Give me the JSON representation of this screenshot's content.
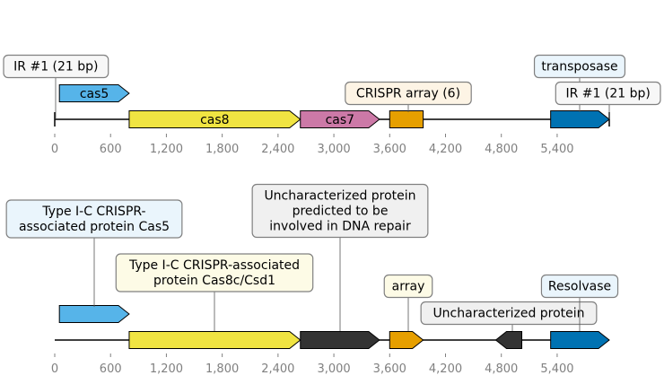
{
  "colors": {
    "cas5": "#56b4e9",
    "cas8": "#f0e442",
    "cas7": "#cc79a7",
    "crispr": "#e69f00",
    "transposase": "#0072b2",
    "uncharacterized": "#333333",
    "box_white": "#f7f7f7",
    "box_blue": "#eaf5fc",
    "box_yellow": "#fdfbe6",
    "box_orange": "#fdf4e5",
    "box_grey": "#f0f0f0",
    "tick_text": "#808080"
  },
  "tracks": [
    {
      "axis": {
        "min": 0,
        "max": 5900,
        "ticks": [
          0,
          600,
          1200,
          1800,
          2400,
          3000,
          3600,
          4200,
          4800,
          5400
        ]
      },
      "tick_labels": [
        "0",
        "600",
        "1,200",
        "1,800",
        "2,400",
        "3,000",
        "3,600",
        "4,200",
        "4,800",
        "5,400"
      ],
      "features": [
        {
          "label": "cas5",
          "start": 50,
          "end": 800,
          "strand": 1,
          "level": 1,
          "color": "#56b4e9",
          "text_inside": true
        },
        {
          "label": "cas8",
          "start": 800,
          "end": 2640,
          "strand": 1,
          "level": 0,
          "color": "#f0e442",
          "text_inside": true
        },
        {
          "label": "cas7",
          "start": 2640,
          "end": 3490,
          "strand": 1,
          "level": 0,
          "color": "#cc79a7",
          "text_inside": true
        },
        {
          "label": "",
          "start": 3600,
          "end": 3960,
          "strand": 0,
          "level": 0,
          "color": "#e69f00"
        },
        {
          "label": "",
          "start": 5330,
          "end": 5960,
          "strand": 1,
          "level": 0,
          "color": "#0072b2"
        }
      ],
      "annotations": [
        {
          "text": "IR #1 (21 bp)",
          "pos": 0,
          "box": "box_white"
        },
        {
          "text": "transposase",
          "pos": 5630,
          "box": "box_blue"
        },
        {
          "text": "CRISPR array (6)",
          "pos": 3780,
          "box": "box_orange"
        },
        {
          "text": "IR #1 (21 bp)",
          "pos": 5960,
          "box": "box_white"
        }
      ]
    },
    {
      "axis": {
        "min": 0,
        "max": 5900,
        "ticks": [
          0,
          600,
          1200,
          1800,
          2400,
          3000,
          3600,
          4200,
          4800,
          5400
        ]
      },
      "tick_labels": [
        "0",
        "600",
        "1,200",
        "1,800",
        "2,400",
        "3,000",
        "3,600",
        "4,200",
        "4,800",
        "5,400"
      ],
      "features": [
        {
          "label": "",
          "start": 50,
          "end": 800,
          "strand": 1,
          "level": 1,
          "color": "#56b4e9"
        },
        {
          "label": "",
          "start": 800,
          "end": 2640,
          "strand": 1,
          "level": 0,
          "color": "#f0e442"
        },
        {
          "label": "",
          "start": 2640,
          "end": 3490,
          "strand": 1,
          "level": 0,
          "color": "#333333"
        },
        {
          "label": "",
          "start": 3600,
          "end": 3960,
          "strand": 1,
          "level": 0,
          "color": "#e69f00"
        },
        {
          "label": "",
          "start": 4740,
          "end": 5020,
          "strand": -1,
          "level": 0,
          "color": "#333333"
        },
        {
          "label": "",
          "start": 5330,
          "end": 5960,
          "strand": 1,
          "level": 0,
          "color": "#0072b2"
        }
      ],
      "annotations": [
        {
          "text": "Type I-C CRISPR-\nassociated protein Cas5",
          "pos": 425,
          "box": "box_blue"
        },
        {
          "text": "Type I-C CRISPR-associated\nprotein Cas8c/Csd1",
          "pos": 1720,
          "box": "box_yellow"
        },
        {
          "text": "Uncharacterized protein\npredicted to be\ninvolved in DNA repair",
          "pos": 3065,
          "box": "box_grey"
        },
        {
          "text": "array",
          "pos": 3780,
          "box": "box_yellow"
        },
        {
          "text": "Uncharacterized protein",
          "pos": 4880,
          "box": "box_grey"
        },
        {
          "text": "Resolvase",
          "pos": 5645,
          "box": "box_blue"
        }
      ]
    }
  ]
}
